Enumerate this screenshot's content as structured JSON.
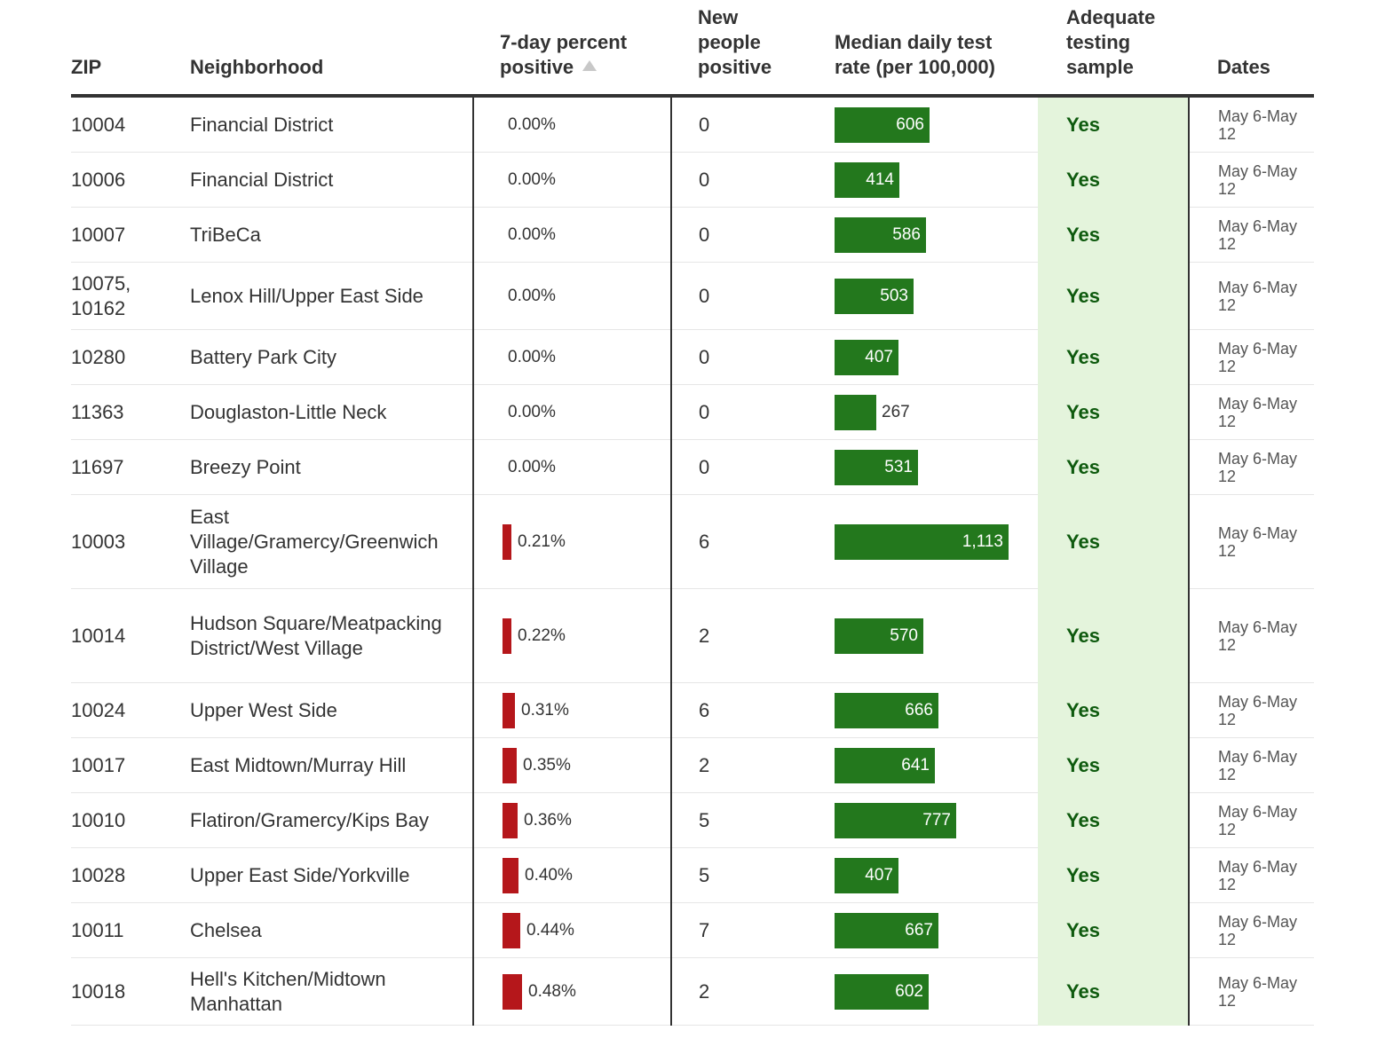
{
  "table": {
    "headers": {
      "zip": "ZIP",
      "neighborhood": "Neighborhood",
      "pct": "7-day percent positive",
      "new": "New people positive",
      "rate": "Median daily test rate (per 100,000)",
      "adequate": "Adequate testing sample",
      "dates": "Dates"
    },
    "rows": [
      {
        "zip": "10004",
        "neighborhood": "Financial District",
        "pct": "0.00%",
        "pct_value": 0.0,
        "new": "0",
        "rate": "606",
        "rate_value": 606,
        "adequate": "Yes",
        "dates": "May 6-May 12"
      },
      {
        "zip": "10006",
        "neighborhood": "Financial District",
        "pct": "0.00%",
        "pct_value": 0.0,
        "new": "0",
        "rate": "414",
        "rate_value": 414,
        "adequate": "Yes",
        "dates": "May 6-May 12"
      },
      {
        "zip": "10007",
        "neighborhood": "TriBeCa",
        "pct": "0.00%",
        "pct_value": 0.0,
        "new": "0",
        "rate": "586",
        "rate_value": 586,
        "adequate": "Yes",
        "dates": "May 6-May 12"
      },
      {
        "zip": "10075, 10162",
        "neighborhood": "Lenox Hill/Upper East Side",
        "pct": "0.00%",
        "pct_value": 0.0,
        "new": "0",
        "rate": "503",
        "rate_value": 503,
        "adequate": "Yes",
        "dates": "May 6-May 12"
      },
      {
        "zip": "10280",
        "neighborhood": "Battery Park City",
        "pct": "0.00%",
        "pct_value": 0.0,
        "new": "0",
        "rate": "407",
        "rate_value": 407,
        "adequate": "Yes",
        "dates": "May 6-May 12"
      },
      {
        "zip": "11363",
        "neighborhood": "Douglaston-Little Neck",
        "pct": "0.00%",
        "pct_value": 0.0,
        "new": "0",
        "rate": "267",
        "rate_value": 267,
        "adequate": "Yes",
        "dates": "May 6-May 12"
      },
      {
        "zip": "11697",
        "neighborhood": "Breezy Point",
        "pct": "0.00%",
        "pct_value": 0.0,
        "new": "0",
        "rate": "531",
        "rate_value": 531,
        "adequate": "Yes",
        "dates": "May 6-May 12"
      },
      {
        "zip": "10003",
        "neighborhood": "East Village/Gramercy/Greenwich Village",
        "pct": "0.21%",
        "pct_value": 0.21,
        "new": "6",
        "rate": "1,113",
        "rate_value": 1113,
        "adequate": "Yes",
        "dates": "May 6-May 12"
      },
      {
        "zip": "10014",
        "neighborhood": "Hudson Square/Meatpacking District/West Village",
        "pct": "0.22%",
        "pct_value": 0.22,
        "new": "2",
        "rate": "570",
        "rate_value": 570,
        "adequate": "Yes",
        "dates": "May 6-May 12"
      },
      {
        "zip": "10024",
        "neighborhood": "Upper West Side",
        "pct": "0.31%",
        "pct_value": 0.31,
        "new": "6",
        "rate": "666",
        "rate_value": 666,
        "adequate": "Yes",
        "dates": "May 6-May 12"
      },
      {
        "zip": "10017",
        "neighborhood": "East Midtown/Murray Hill",
        "pct": "0.35%",
        "pct_value": 0.35,
        "new": "2",
        "rate": "641",
        "rate_value": 641,
        "adequate": "Yes",
        "dates": "May 6-May 12"
      },
      {
        "zip": "10010",
        "neighborhood": "Flatiron/Gramercy/Kips Bay",
        "pct": "0.36%",
        "pct_value": 0.36,
        "new": "5",
        "rate": "777",
        "rate_value": 777,
        "adequate": "Yes",
        "dates": "May 6-May 12"
      },
      {
        "zip": "10028",
        "neighborhood": "Upper East Side/Yorkville",
        "pct": "0.40%",
        "pct_value": 0.4,
        "new": "5",
        "rate": "407",
        "rate_value": 407,
        "adequate": "Yes",
        "dates": "May 6-May 12"
      },
      {
        "zip": "10011",
        "neighborhood": "Chelsea",
        "pct": "0.44%",
        "pct_value": 0.44,
        "new": "7",
        "rate": "667",
        "rate_value": 667,
        "adequate": "Yes",
        "dates": "May 6-May 12"
      },
      {
        "zip": "10018",
        "neighborhood": "Hell's Kitchen/Midtown Manhattan",
        "pct": "0.48%",
        "pct_value": 0.48,
        "new": "2",
        "rate": "602",
        "rate_value": 602,
        "adequate": "Yes",
        "dates": "May 6-May 12"
      }
    ]
  },
  "colors": {
    "positive_bar": "#b5171b",
    "rate_bar": "#23781d",
    "adequate_bg": "#e4f4dc",
    "adequate_text": "#0e5a0e"
  },
  "icons": {
    "sort": "sort-ascending-icon"
  }
}
